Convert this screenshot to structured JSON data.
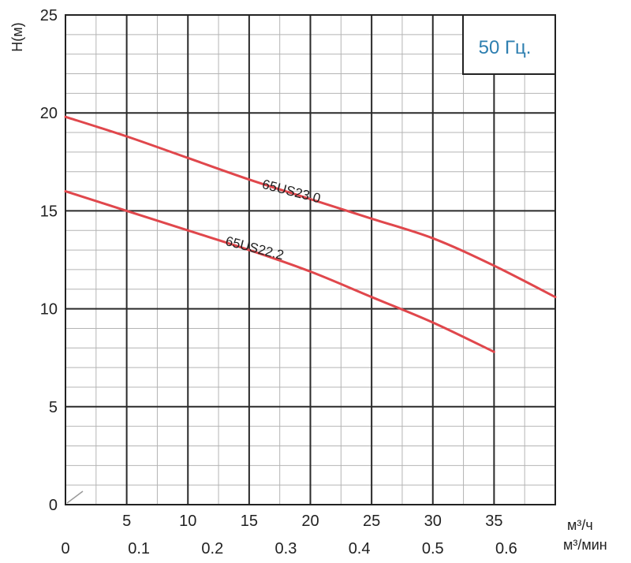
{
  "chart_data": {
    "type": "line",
    "ylabel": "H(м)",
    "badge": "50 Гц.",
    "x_primary": {
      "unit": "м³/ч",
      "range": [
        0,
        40
      ],
      "ticks": [
        5,
        10,
        15,
        20,
        25,
        30,
        35
      ]
    },
    "x_secondary": {
      "unit": "м³/мин",
      "range": [
        0,
        0.6667
      ],
      "ticks": [
        "0",
        "0.1",
        "0.2",
        "0.3",
        "0.4",
        "0.5",
        "0.6"
      ]
    },
    "y": {
      "range": [
        0,
        25
      ],
      "ticks": [
        0,
        5,
        10,
        15,
        20,
        25
      ]
    },
    "grid": true,
    "series": [
      {
        "name": "65US23.0",
        "color": "#e0474c",
        "points": [
          [
            0,
            19.8
          ],
          [
            5,
            18.8
          ],
          [
            10,
            17.7
          ],
          [
            15,
            16.6
          ],
          [
            20,
            15.6
          ],
          [
            25,
            14.6
          ],
          [
            30,
            13.6
          ],
          [
            35,
            12.2
          ],
          [
            40,
            10.6
          ]
        ]
      },
      {
        "name": "65US22.2",
        "color": "#e0474c",
        "points": [
          [
            0,
            16.0
          ],
          [
            5,
            15.0
          ],
          [
            10,
            14.0
          ],
          [
            15,
            13.0
          ],
          [
            20,
            11.9
          ],
          [
            25,
            10.6
          ],
          [
            30,
            9.3
          ],
          [
            35,
            7.8
          ]
        ]
      }
    ]
  }
}
